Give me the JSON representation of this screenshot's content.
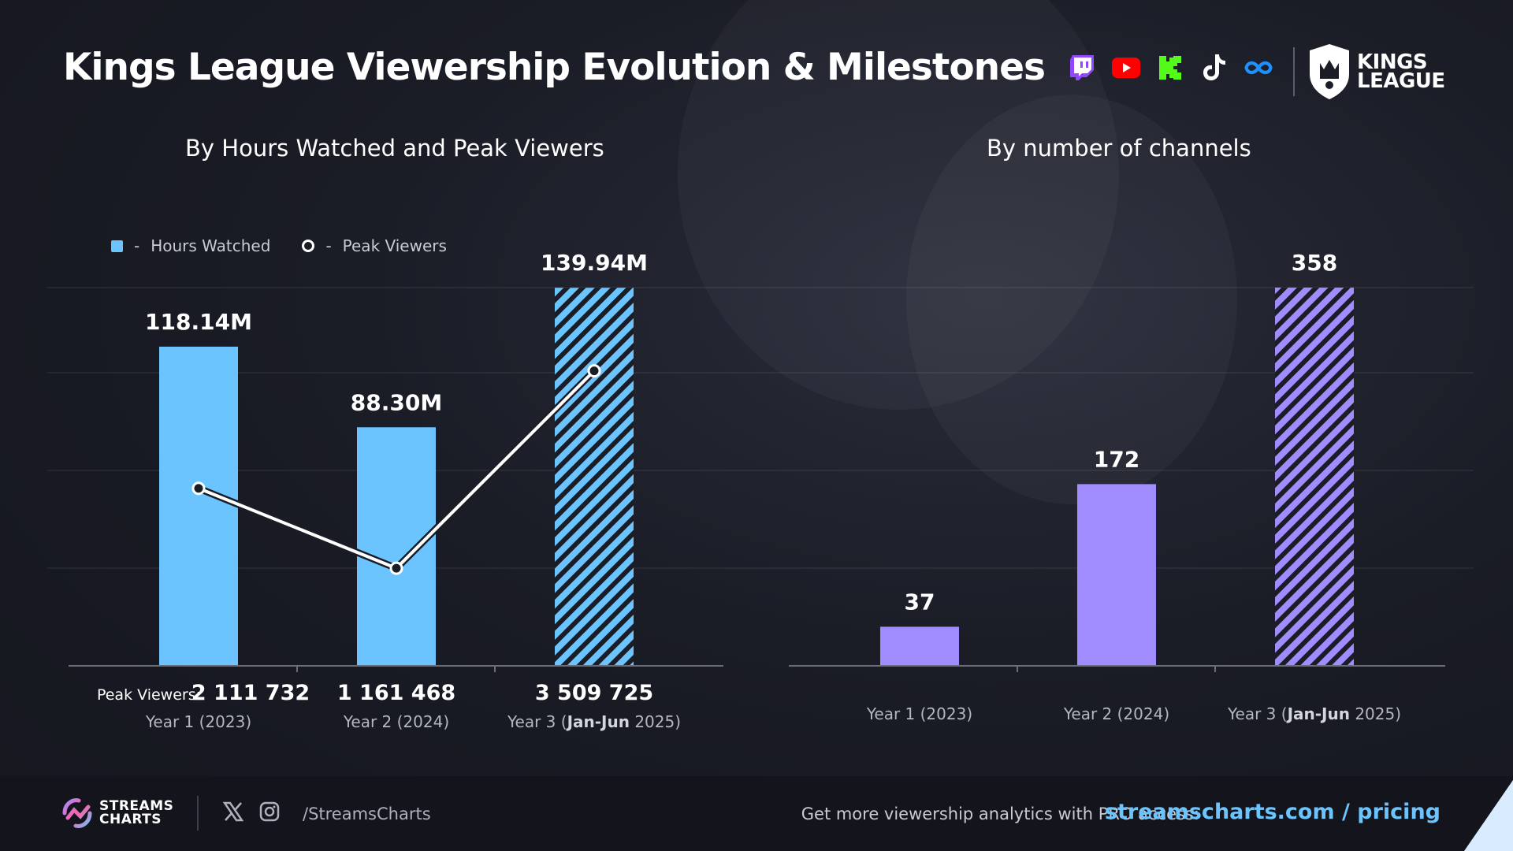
{
  "title": "Kings League Viewership Evolution & Milestones",
  "brand_logo": "KINGS\nLEAGUE",
  "platform_icons": [
    "twitch-icon",
    "youtube-icon",
    "kick-icon",
    "tiktok-icon",
    "infinity-icon"
  ],
  "colors": {
    "hours": "#6cc4ff",
    "channels": "#a08cff",
    "line": "#ffffff",
    "link": "#6cc4ff"
  },
  "chart_data": [
    {
      "type": "bar",
      "title": "By Hours Watched and Peak Viewers",
      "legend": [
        "Hours Watched",
        "Peak Viewers"
      ],
      "legend_position": "top-left",
      "categories": [
        {
          "plain": "Year 1 (2023)",
          "pre": "",
          "bold": "",
          "post": ""
        },
        {
          "plain": "Year 2 (2024)",
          "pre": "",
          "bold": "",
          "post": ""
        },
        {
          "plain": "",
          "pre": "Year 3 (",
          "bold": "Jan-Jun",
          "post": " 2025)"
        }
      ],
      "series": [
        {
          "name": "Hours Watched",
          "values": [
            118.14,
            88.3,
            139.94
          ],
          "labels": [
            "118.14M",
            "88.30M",
            "139.94M"
          ],
          "hatched": [
            false,
            false,
            true
          ]
        },
        {
          "name": "Peak Viewers",
          "values": [
            2111732,
            1161468,
            3509725
          ],
          "labels": [
            "2 111 732",
            "1 161 468",
            "3 509 725"
          ]
        }
      ],
      "peak_prefix": "Peak Viewers:",
      "ylim": [
        0,
        140
      ],
      "grid": true
    },
    {
      "type": "bar",
      "title": "By number of channels",
      "categories": [
        {
          "plain": "Year 1 (2023)",
          "pre": "",
          "bold": "",
          "post": ""
        },
        {
          "plain": "Year 2 (2024)",
          "pre": "",
          "bold": "",
          "post": ""
        },
        {
          "plain": "",
          "pre": "Year 3 (",
          "bold": "Jan-Jun",
          "post": " 2025)"
        }
      ],
      "values": [
        37,
        172,
        358
      ],
      "labels": [
        "37",
        "172",
        "358"
      ],
      "hatched": [
        false,
        false,
        true
      ],
      "ylim": [
        0,
        358
      ],
      "grid": true
    }
  ],
  "footer": {
    "logo_line1": "STREAMS",
    "logo_line2": "CHARTS",
    "handle": "/StreamsCharts",
    "promo_text": "Get more viewership analytics with PRO access:",
    "promo_link": "streamscharts.com / pricing"
  }
}
